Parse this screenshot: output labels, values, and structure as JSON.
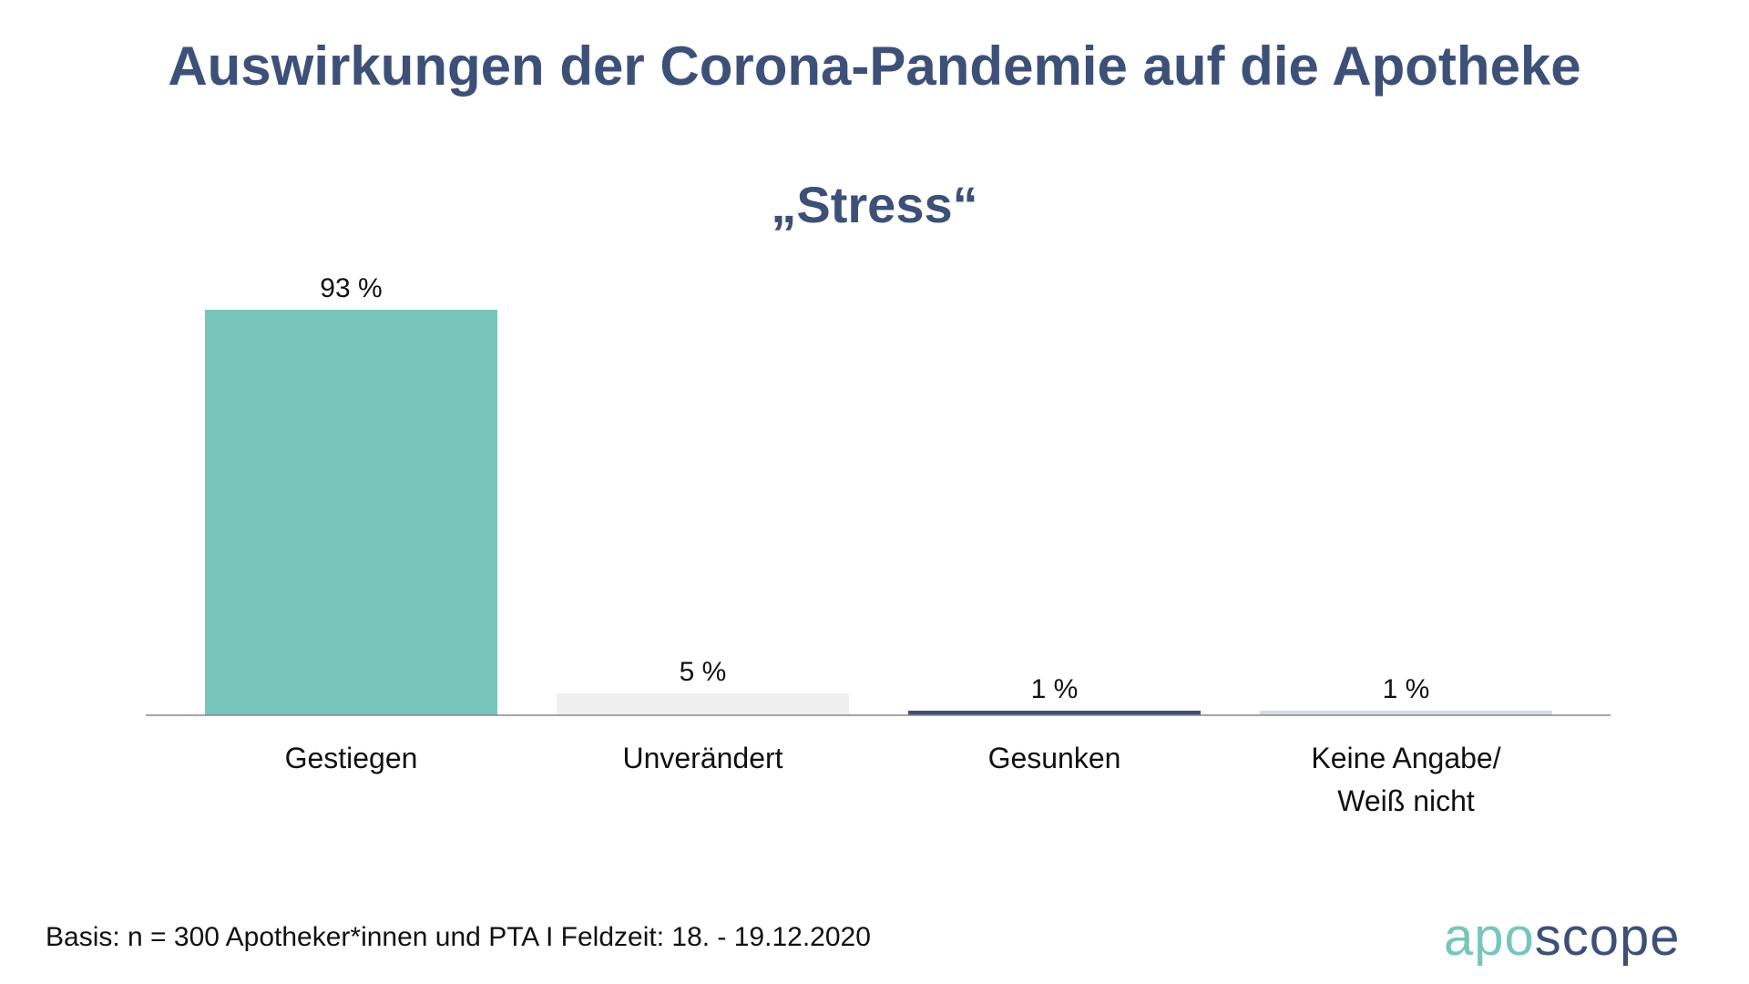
{
  "title": "Auswirkungen der Corona-Pandemie auf die Apotheke",
  "subtitle": "„Stress“",
  "chart_data": {
    "type": "bar",
    "title": "„Stress“",
    "categories": [
      "Gestiegen",
      "Unverändert",
      "Gesunken",
      "Keine Angabe/\nWeiß nicht"
    ],
    "values": [
      93,
      5,
      1,
      1
    ],
    "data_labels": [
      "93 %",
      "5 %",
      "1 %",
      "1 %"
    ],
    "colors": [
      "#77c5bb",
      "#efefef",
      "#3d5078",
      "#d5dbe1"
    ],
    "ylim": [
      0,
      100
    ],
    "xlabel": "",
    "ylabel": "",
    "grid": false
  },
  "footer": "Basis: n = 300 Apotheker*innen und PTA I Feldzeit: 18. - 19.12.2020",
  "logo": {
    "part1": "apo",
    "part2": "scope"
  }
}
